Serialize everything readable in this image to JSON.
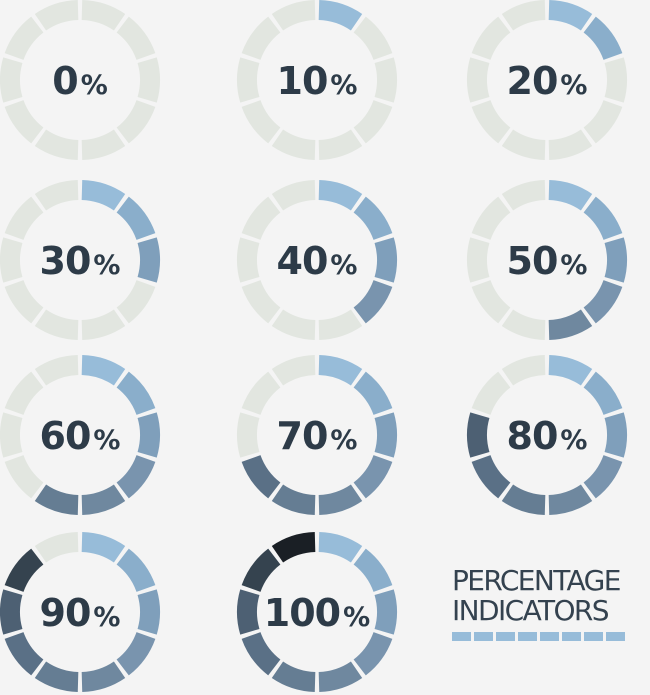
{
  "indicators": [
    {
      "value": "0",
      "percent": 0,
      "suffix": "%"
    },
    {
      "value": "10",
      "percent": 10,
      "suffix": "%"
    },
    {
      "value": "20",
      "percent": 20,
      "suffix": "%"
    },
    {
      "value": "30",
      "percent": 30,
      "suffix": "%"
    },
    {
      "value": "40",
      "percent": 40,
      "suffix": "%"
    },
    {
      "value": "50",
      "percent": 50,
      "suffix": "%"
    },
    {
      "value": "60",
      "percent": 60,
      "suffix": "%"
    },
    {
      "value": "70",
      "percent": 70,
      "suffix": "%"
    },
    {
      "value": "80",
      "percent": 80,
      "suffix": "%"
    },
    {
      "value": "90",
      "percent": 90,
      "suffix": "%"
    },
    {
      "value": "100",
      "percent": 100,
      "suffix": "%"
    }
  ],
  "title": {
    "line1": "PERCENTAGE",
    "line2": "INDICATORS"
  },
  "colors": {
    "background": "#f4f4f4",
    "empty_segment": "#e2e6e0",
    "segment_scale": [
      "#97bcd9",
      "#8aaecb",
      "#7f9fbb",
      "#7994ae",
      "#6f889f",
      "#657d93",
      "#5a7086",
      "#4d6073",
      "#35434f",
      "#1a1f25"
    ],
    "label": "#2d3b48",
    "title_text": "#34424f",
    "title_bar": "#97bcd9"
  }
}
